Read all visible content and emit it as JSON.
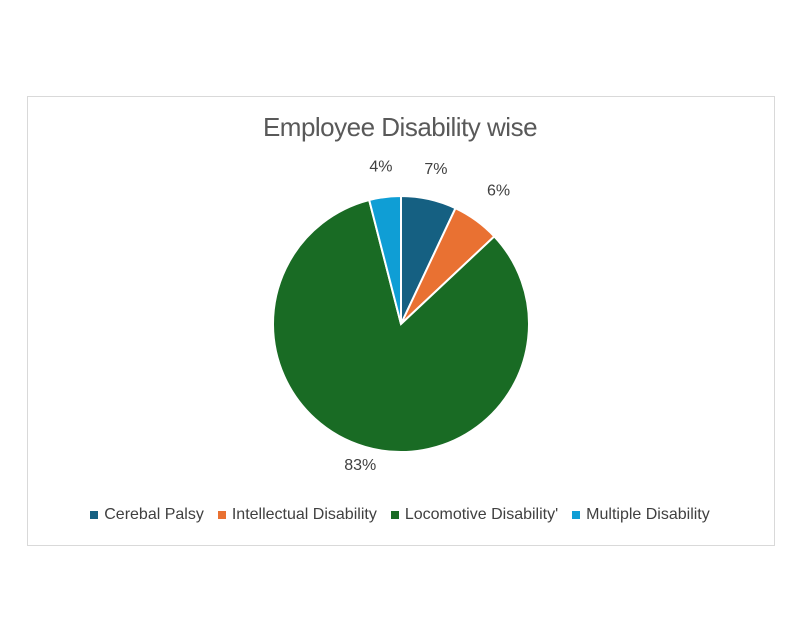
{
  "chart_data": {
    "type": "pie",
    "title": "Employee Disability wise",
    "categories": [
      "Cerebal Palsy",
      "Intellectual Disability",
      "Locomotive Disability'",
      "Multiple Disability"
    ],
    "values": [
      7,
      6,
      83,
      4
    ],
    "labels": [
      "7%",
      "6%",
      "83%",
      "4%"
    ],
    "colors": [
      "#156082",
      "#e97132",
      "#196b24",
      "#0f9ed5"
    ],
    "legend_position": "bottom"
  }
}
